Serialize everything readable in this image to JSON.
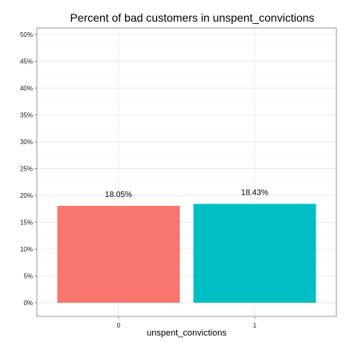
{
  "chart_data": {
    "type": "bar",
    "title": "Percent of bad customers in unspent_convictions",
    "xlabel": "unspent_convictions",
    "ylabel": "",
    "categories": [
      "0",
      "1"
    ],
    "values": [
      0.1805,
      0.1843
    ],
    "data_labels": [
      "18.05%",
      "18.43%"
    ],
    "colors": [
      "#F8766D",
      "#00BFC4"
    ],
    "ylim": [
      0,
      0.5
    ],
    "yticks": [
      0,
      0.05,
      0.1,
      0.15,
      0.2,
      0.25,
      0.3,
      0.35,
      0.4,
      0.45,
      0.5
    ],
    "ytick_labels": [
      "0%",
      "5%",
      "10%",
      "15%",
      "20%",
      "25%",
      "30%",
      "35%",
      "40%",
      "45%",
      "50%"
    ],
    "grid": true,
    "legend": "none"
  }
}
